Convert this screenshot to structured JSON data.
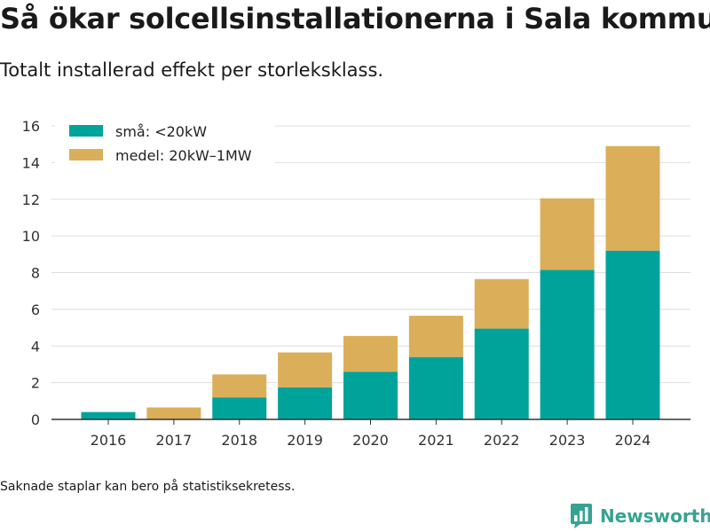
{
  "title": "Så ökar solcellsinstallationerna i Sala kommun",
  "subtitle": "Totalt installerad effekt per storleksklass.",
  "note": "Saknade staplar kan bero på statistiksekretess.",
  "brand": "Newsworthy",
  "colors": {
    "sma": "#00a39a",
    "medel": "#dbae5a",
    "brand": "#36a392",
    "grid": "#dddddd",
    "axis": "#333333"
  },
  "chart_data": {
    "type": "bar",
    "stacked": true,
    "categories": [
      "2016",
      "2017",
      "2018",
      "2019",
      "2020",
      "2021",
      "2022",
      "2023",
      "2024"
    ],
    "series": [
      {
        "name": "små: <20kW",
        "values": [
          0.4,
          0,
          1.2,
          1.75,
          2.6,
          3.4,
          4.95,
          8.15,
          9.2
        ]
      },
      {
        "name": "medel: 20kW–1MW",
        "values": [
          0,
          0.65,
          1.25,
          1.9,
          1.95,
          2.25,
          2.7,
          3.9,
          5.7
        ]
      }
    ],
    "yticks": [
      0,
      2,
      4,
      6,
      8,
      10,
      12,
      14,
      16
    ],
    "ylim": [
      0,
      16
    ],
    "grid": true,
    "legend": "top-left"
  }
}
